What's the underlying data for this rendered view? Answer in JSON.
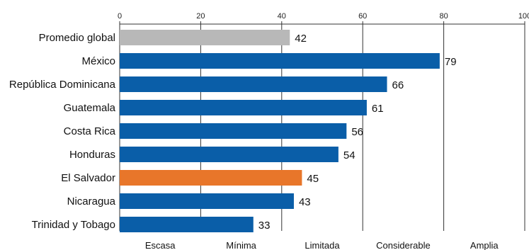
{
  "chart_data": {
    "type": "bar",
    "orientation": "horizontal",
    "categories": [
      "Promedio global",
      "México",
      "República Dominicana",
      "Guatemala",
      "Costa Rica",
      "Honduras",
      "El Salvador",
      "Nicaragua",
      "Trinidad y Tobago"
    ],
    "values": [
      42,
      79,
      66,
      61,
      56,
      54,
      45,
      43,
      33
    ],
    "value_labels": [
      "42",
      "79",
      "66",
      "61",
      "56",
      "54",
      "45",
      "43",
      "33"
    ],
    "bar_colors": [
      "#b8b8b8",
      "#0a5ea8",
      "#0a5ea8",
      "#0a5ea8",
      "#0a5ea8",
      "#0a5ea8",
      "#e8762a",
      "#0a5ea8",
      "#0a5ea8"
    ],
    "xlim": [
      0,
      100
    ],
    "x_ticks": [
      "0",
      "20",
      "40",
      "60",
      "80",
      "100"
    ],
    "x_tick_values": [
      0,
      20,
      40,
      60,
      80,
      100
    ],
    "x_axis_position": "top",
    "bands": [
      "Escasa",
      "Mínima",
      "Limitada",
      "Considerable",
      "Amplia"
    ],
    "grid": true,
    "title": "",
    "xlabel": "",
    "ylabel": ""
  },
  "colors": {
    "grid": "#333333",
    "axis": "#333333",
    "text": "#111111"
  }
}
